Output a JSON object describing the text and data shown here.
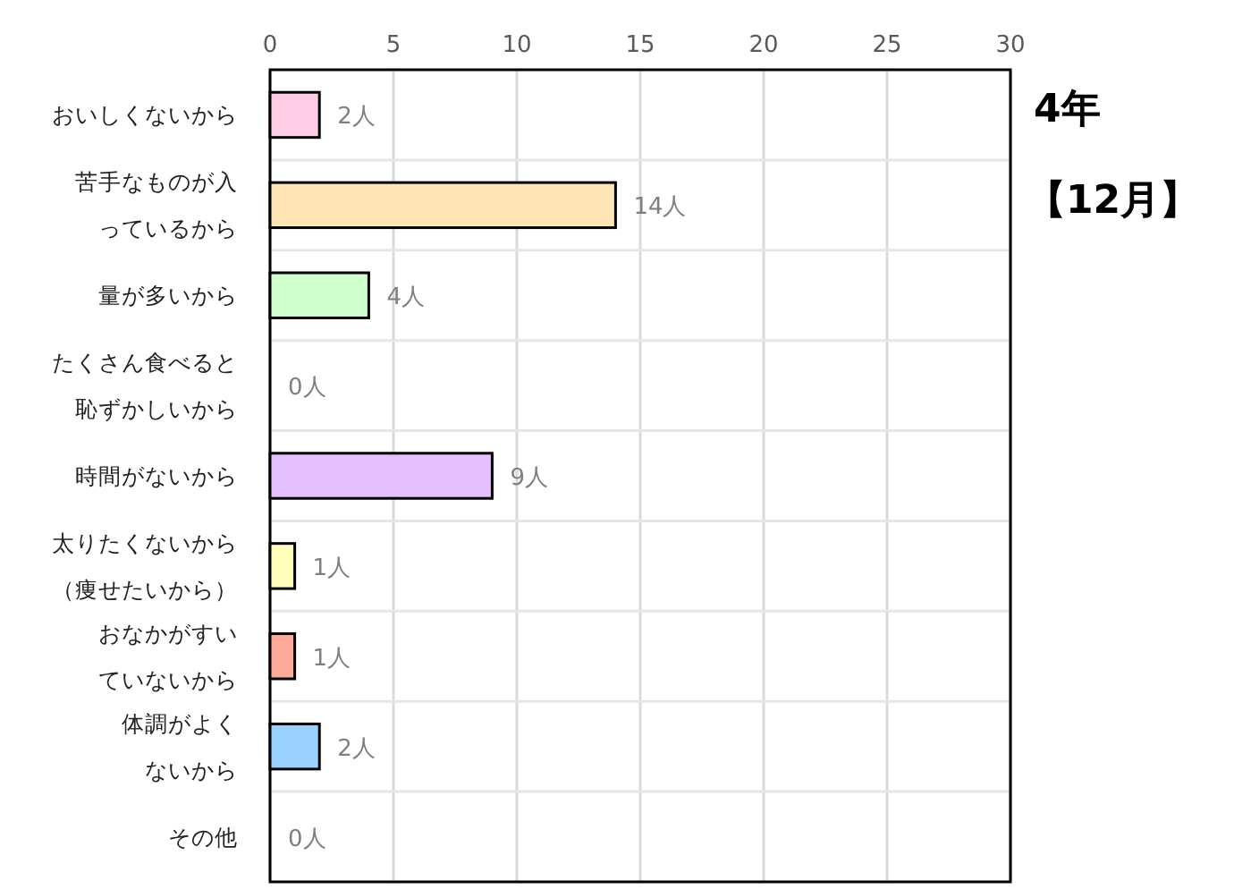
{
  "chart_data": {
    "type": "bar",
    "orientation": "horizontal",
    "title": "4年",
    "subtitle": "【12月】",
    "categories": [
      "おいしくないから",
      "苦手なものが入っているから",
      "量が多いから",
      "たくさん食べると恥ずかしいから",
      "時間がないから",
      "太りたくないから（痩せたいから）",
      "おなかがすいていないから",
      "体調がよくないから",
      "その他"
    ],
    "values": [
      2,
      14,
      4,
      0,
      9,
      1,
      1,
      2,
      0
    ],
    "colors": [
      "#ffcce6",
      "#ffe5b3",
      "#ccffcc",
      "#dddddd",
      "#e5bfff",
      "#ffffbb",
      "#ffaa99",
      "#99d1ff",
      "#dddddd"
    ],
    "value_labels": [
      "2人",
      "14人",
      "4人",
      "0人",
      "9人",
      "1人",
      "1人",
      "2人",
      "0人"
    ],
    "xlim": [
      0,
      30
    ],
    "xticks": [
      0,
      5,
      10,
      15,
      20,
      25,
      30
    ],
    "grid": true
  }
}
